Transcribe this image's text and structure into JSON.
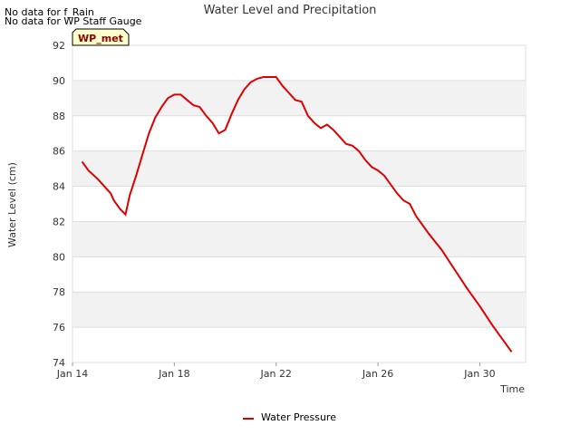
{
  "no_data_messages": [
    "No data for f_Rain",
    "No data for WP Staff Gauge"
  ],
  "badge": {
    "label": "WP_met",
    "bg_color": "#ffffcc",
    "text_color": "#8b0000"
  },
  "legend": {
    "label": "Water Pressure",
    "color": "#dd0000"
  },
  "chart_data": {
    "type": "line",
    "title": "Water Level and Precipitation",
    "xlabel": "Time",
    "ylabel": "Water Level (cm)",
    "xlim": [
      "Jan 14",
      "Jan 31.8"
    ],
    "ylim": [
      74,
      92
    ],
    "x_ticks": [
      "Jan 14",
      "Jan 18",
      "Jan 22",
      "Jan 26",
      "Jan 30"
    ],
    "y_ticks": [
      74,
      76,
      78,
      80,
      82,
      84,
      86,
      88,
      90,
      92
    ],
    "grid": true,
    "legend_position": "bottom-center",
    "series": [
      {
        "name": "Water Pressure",
        "color": "#dd0000",
        "x": [
          "Jan 14 09:00",
          "Jan 14 15:00",
          "Jan 15 00:00",
          "Jan 15 06:00",
          "Jan 15 12:00",
          "Jan 15 15:00",
          "Jan 15 21:00",
          "Jan 16 02:00",
          "Jan 16 06:00",
          "Jan 16 12:00",
          "Jan 16 18:00",
          "Jan 17 00:00",
          "Jan 17 06:00",
          "Jan 17 12:00",
          "Jan 17 18:00",
          "Jan 18 00:00",
          "Jan 18 06:00",
          "Jan 18 12:00",
          "Jan 18 18:00",
          "Jan 19 00:00",
          "Jan 19 06:00",
          "Jan 19 12:00",
          "Jan 19 18:00",
          "Jan 20 00:00",
          "Jan 20 06:00",
          "Jan 20 12:00",
          "Jan 20 18:00",
          "Jan 21 00:00",
          "Jan 21 06:00",
          "Jan 21 12:00",
          "Jan 21 18:00",
          "Jan 22 00:00",
          "Jan 22 06:00",
          "Jan 22 12:00",
          "Jan 22 18:00",
          "Jan 23 00:00",
          "Jan 23 06:00",
          "Jan 23 12:00",
          "Jan 23 18:00",
          "Jan 24 00:00",
          "Jan 24 06:00",
          "Jan 24 12:00",
          "Jan 24 18:00",
          "Jan 25 00:00",
          "Jan 25 06:00",
          "Jan 25 12:00",
          "Jan 25 18:00",
          "Jan 26 00:00",
          "Jan 26 06:00",
          "Jan 26 12:00",
          "Jan 26 18:00",
          "Jan 27 00:00",
          "Jan 27 06:00",
          "Jan 27 12:00",
          "Jan 28 00:00",
          "Jan 28 12:00",
          "Jan 29 00:00",
          "Jan 29 12:00",
          "Jan 30 00:00",
          "Jan 30 12:00",
          "Jan 31 00:00",
          "Jan 31 06:00"
        ],
        "values": [
          85.4,
          84.9,
          84.4,
          84.0,
          83.6,
          83.2,
          82.7,
          82.4,
          83.5,
          84.6,
          85.8,
          87.0,
          87.9,
          88.5,
          89.0,
          89.2,
          89.2,
          88.9,
          88.6,
          88.5,
          88.0,
          87.6,
          87.0,
          87.2,
          88.1,
          88.9,
          89.5,
          89.9,
          90.1,
          90.2,
          90.2,
          90.2,
          89.7,
          89.3,
          88.9,
          88.8,
          88.0,
          87.6,
          87.3,
          87.5,
          87.2,
          86.8,
          86.4,
          86.3,
          86.0,
          85.5,
          85.1,
          84.9,
          84.6,
          84.1,
          83.6,
          83.2,
          83.0,
          82.3,
          81.3,
          80.4,
          79.3,
          78.2,
          77.2,
          76.1,
          75.1,
          74.6
        ]
      }
    ]
  }
}
